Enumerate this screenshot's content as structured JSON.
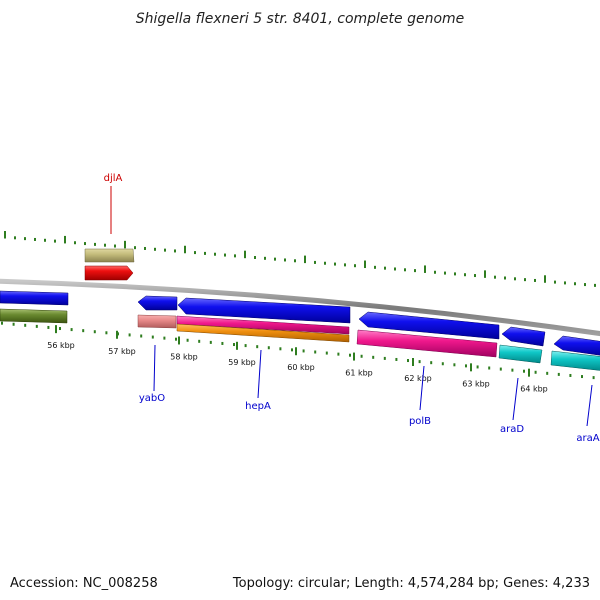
{
  "title": "Shigella flexneri 5 str. 8401, complete genome",
  "footer": {
    "accession": "Accession: NC_008258",
    "summary": "Topology: circular; Length: 4,574,284 bp; Genes: 4,233"
  },
  "colors": {
    "backbone": "#8a8a8a",
    "ticks": "#2e7d1f",
    "label_blue": "#0000cc",
    "label_red": "#cc0000"
  },
  "scale": {
    "unit": "kbp",
    "ticks_kbp": [
      56,
      57,
      58,
      59,
      60,
      61,
      62,
      63,
      64
    ],
    "tick_labels": [
      "56 kbp",
      "57 kbp",
      "58 kbp",
      "59 kbp",
      "60 kbp",
      "61 kbp",
      "62 kbp",
      "63 kbp",
      "64 kbp"
    ]
  },
  "genes": [
    {
      "name": "djlA",
      "label_color": "#cc0000",
      "strand": "forward",
      "fill": "#e60000"
    },
    {
      "name": "yabO",
      "label_color": "#0000cc",
      "strand": "reverse",
      "fill": "#0a0ae6"
    },
    {
      "name": "hepA",
      "label_color": "#0000cc",
      "strand": "reverse",
      "fill": "#0a0ae6"
    },
    {
      "name": "polB",
      "label_color": "#0000cc",
      "strand": "reverse",
      "fill": "#0a0ae6"
    },
    {
      "name": "araD",
      "label_color": "#0000cc",
      "strand": "reverse",
      "fill": "#0a0ae6"
    },
    {
      "name": "araA",
      "label_color": "#0000cc",
      "strand": "reverse",
      "fill": "#0a0ae6"
    }
  ]
}
